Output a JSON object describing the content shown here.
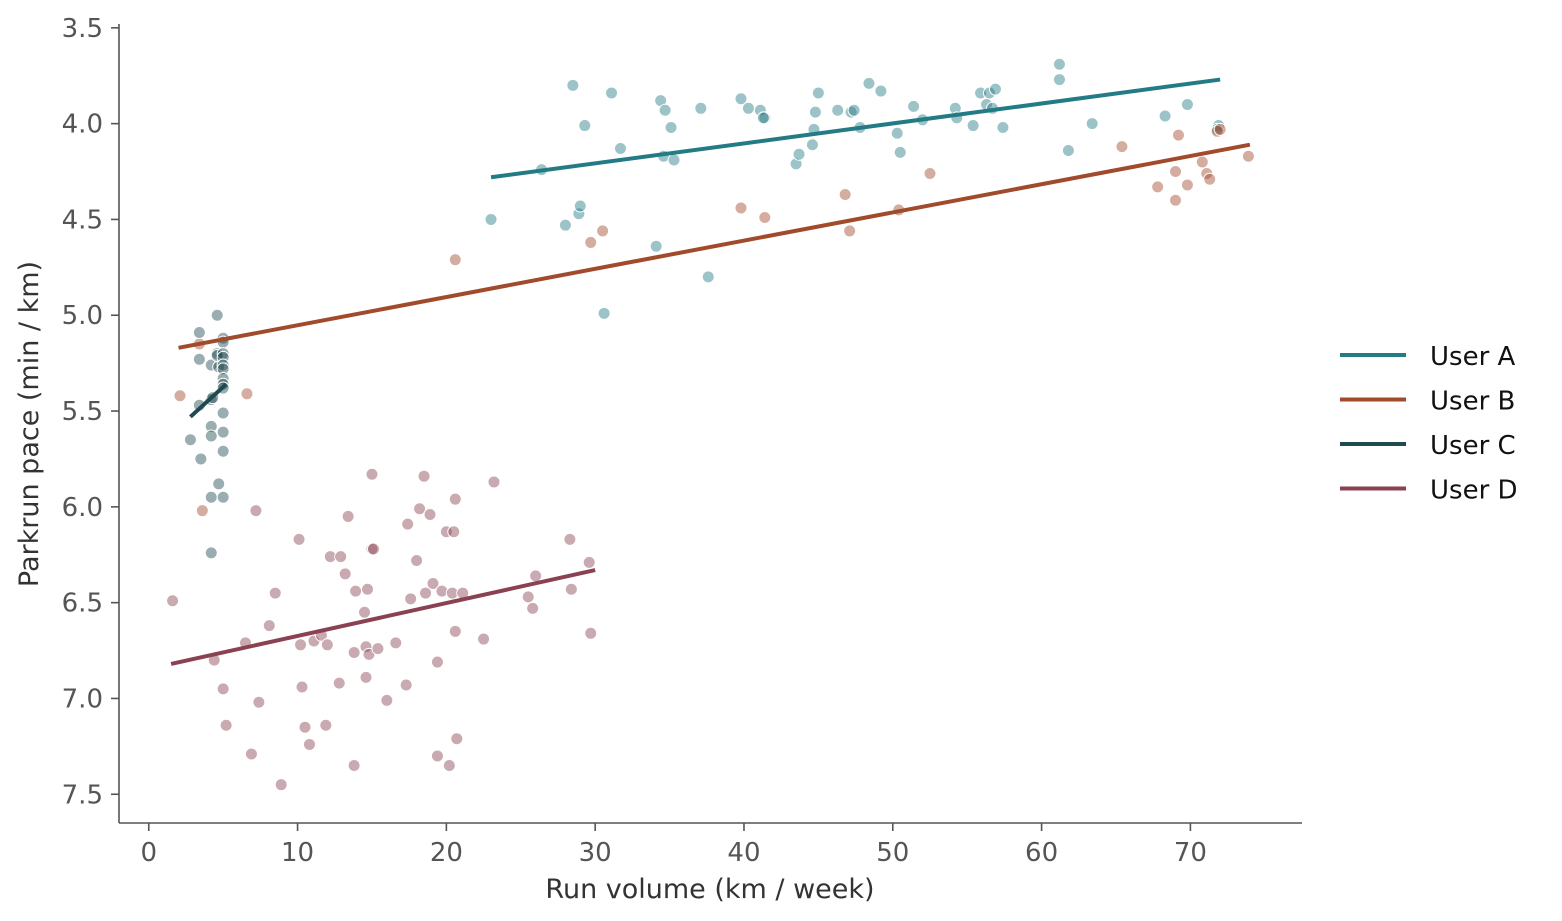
{
  "chart_data": {
    "type": "scatter",
    "title": "",
    "xlabel": "Run volume (km / week)",
    "ylabel": "Parkrun pace (min / km)",
    "xlim": [
      -2,
      77.5
    ],
    "ylim": [
      7.65,
      3.48
    ],
    "y_inverted": true,
    "x_ticks": [
      0,
      10,
      20,
      30,
      40,
      50,
      60,
      70
    ],
    "y_ticks": [
      3.5,
      4.0,
      4.5,
      5.0,
      5.5,
      6.0,
      6.5,
      7.0,
      7.5
    ],
    "x_tick_labels": [
      "0",
      "10",
      "20",
      "30",
      "40",
      "50",
      "60",
      "70"
    ],
    "y_tick_labels": [
      "3.5",
      "4.0",
      "4.5",
      "5.0",
      "5.5",
      "6.0",
      "6.5",
      "7.0",
      "7.5"
    ],
    "grid": false,
    "legend_position": "right",
    "series": [
      {
        "name": "User A",
        "color": "#237b85",
        "trend": [
          [
            23,
            4.28
          ],
          [
            72,
            3.77
          ]
        ],
        "points": [
          [
            28.5,
            3.8
          ],
          [
            31.1,
            3.84
          ],
          [
            29.3,
            4.01
          ],
          [
            26.4,
            4.24
          ],
          [
            23.0,
            4.5
          ],
          [
            28.0,
            4.53
          ],
          [
            28.9,
            4.47
          ],
          [
            29.0,
            4.43
          ],
          [
            30.6,
            4.99
          ],
          [
            31.7,
            4.13
          ],
          [
            34.1,
            4.64
          ],
          [
            34.4,
            3.88
          ],
          [
            34.7,
            3.93
          ],
          [
            35.1,
            4.02
          ],
          [
            34.6,
            4.17
          ],
          [
            35.3,
            4.19
          ],
          [
            37.1,
            3.92
          ],
          [
            37.6,
            4.8
          ],
          [
            39.8,
            3.87
          ],
          [
            40.3,
            3.92
          ],
          [
            41.1,
            3.93
          ],
          [
            41.4,
            3.97
          ],
          [
            41.3,
            3.97
          ],
          [
            43.5,
            4.21
          ],
          [
            43.7,
            4.16
          ],
          [
            44.6,
            4.11
          ],
          [
            44.7,
            4.03
          ],
          [
            44.8,
            3.94
          ],
          [
            45.0,
            3.84
          ],
          [
            46.3,
            3.93
          ],
          [
            47.2,
            3.94
          ],
          [
            47.4,
            3.93
          ],
          [
            47.8,
            4.02
          ],
          [
            48.4,
            3.79
          ],
          [
            49.2,
            3.83
          ],
          [
            50.3,
            4.05
          ],
          [
            50.5,
            4.15
          ],
          [
            51.4,
            3.91
          ],
          [
            52.0,
            3.98
          ],
          [
            54.2,
            3.92
          ],
          [
            54.3,
            3.97
          ],
          [
            55.4,
            4.01
          ],
          [
            55.9,
            3.84
          ],
          [
            56.3,
            3.9
          ],
          [
            56.5,
            3.84
          ],
          [
            56.7,
            3.92
          ],
          [
            56.9,
            3.82
          ],
          [
            57.4,
            4.02
          ],
          [
            61.2,
            3.69
          ],
          [
            61.2,
            3.77
          ],
          [
            61.8,
            4.14
          ],
          [
            63.4,
            4.0
          ],
          [
            68.3,
            3.96
          ],
          [
            69.8,
            3.9
          ],
          [
            71.9,
            4.01
          ],
          [
            71.8,
            4.03
          ]
        ]
      },
      {
        "name": "User B",
        "color": "#a14a2c",
        "trend": [
          [
            2,
            5.17
          ],
          [
            74,
            4.11
          ]
        ],
        "points": [
          [
            2.1,
            5.42
          ],
          [
            3.4,
            5.15
          ],
          [
            3.6,
            6.02
          ],
          [
            6.6,
            5.41
          ],
          [
            20.6,
            4.71
          ],
          [
            29.7,
            4.62
          ],
          [
            30.5,
            4.56
          ],
          [
            39.8,
            4.44
          ],
          [
            41.4,
            4.49
          ],
          [
            46.8,
            4.37
          ],
          [
            47.1,
            4.56
          ],
          [
            50.4,
            4.45
          ],
          [
            52.5,
            4.26
          ],
          [
            65.4,
            4.12
          ],
          [
            67.8,
            4.33
          ],
          [
            69.0,
            4.25
          ],
          [
            69.0,
            4.4
          ],
          [
            69.2,
            4.06
          ],
          [
            69.8,
            4.32
          ],
          [
            70.8,
            4.2
          ],
          [
            71.1,
            4.26
          ],
          [
            71.3,
            4.29
          ],
          [
            71.8,
            4.04
          ],
          [
            72.0,
            4.03
          ],
          [
            73.9,
            4.17
          ]
        ]
      },
      {
        "name": "User C",
        "color": "#1f4a4f",
        "trend": [
          [
            2.8,
            5.53
          ],
          [
            5.2,
            5.36
          ]
        ],
        "points": [
          [
            2.8,
            5.65
          ],
          [
            3.4,
            5.09
          ],
          [
            3.4,
            5.23
          ],
          [
            3.5,
            5.75
          ],
          [
            3.4,
            5.47
          ],
          [
            4.2,
            5.26
          ],
          [
            4.2,
            5.44
          ],
          [
            4.2,
            5.58
          ],
          [
            4.2,
            5.63
          ],
          [
            4.2,
            5.95
          ],
          [
            4.2,
            6.24
          ],
          [
            4.6,
            5.0
          ],
          [
            4.6,
            5.2
          ],
          [
            4.6,
            5.21
          ],
          [
            4.7,
            5.27
          ],
          [
            4.7,
            5.88
          ],
          [
            5.0,
            5.12
          ],
          [
            5.0,
            5.14
          ],
          [
            5.0,
            5.2
          ],
          [
            5.0,
            5.22
          ],
          [
            5.0,
            5.26
          ],
          [
            5.0,
            5.28
          ],
          [
            5.0,
            5.33
          ],
          [
            5.0,
            5.36
          ],
          [
            5.0,
            5.38
          ],
          [
            5.0,
            5.51
          ],
          [
            5.0,
            5.61
          ],
          [
            5.0,
            5.71
          ],
          [
            5.0,
            5.95
          ],
          [
            4.3,
            5.43
          ]
        ]
      },
      {
        "name": "User D",
        "color": "#8a4252",
        "trend": [
          [
            1.5,
            6.82
          ],
          [
            30.0,
            6.33
          ]
        ],
        "points": [
          [
            1.6,
            6.49
          ],
          [
            4.4,
            6.8
          ],
          [
            5.0,
            6.95
          ],
          [
            5.2,
            7.14
          ],
          [
            6.5,
            6.71
          ],
          [
            6.9,
            7.29
          ],
          [
            7.2,
            6.02
          ],
          [
            7.4,
            7.02
          ],
          [
            8.1,
            6.62
          ],
          [
            8.5,
            6.45
          ],
          [
            8.9,
            7.45
          ],
          [
            10.1,
            6.17
          ],
          [
            10.2,
            6.72
          ],
          [
            10.3,
            6.94
          ],
          [
            10.5,
            7.15
          ],
          [
            10.8,
            7.24
          ],
          [
            11.1,
            6.7
          ],
          [
            11.6,
            6.67
          ],
          [
            11.9,
            7.14
          ],
          [
            12.0,
            6.72
          ],
          [
            12.2,
            6.26
          ],
          [
            12.8,
            6.92
          ],
          [
            12.9,
            6.26
          ],
          [
            13.2,
            6.35
          ],
          [
            13.4,
            6.05
          ],
          [
            13.8,
            6.76
          ],
          [
            13.8,
            7.35
          ],
          [
            13.9,
            6.44
          ],
          [
            14.5,
            6.55
          ],
          [
            14.6,
            6.73
          ],
          [
            14.6,
            6.89
          ],
          [
            14.7,
            6.43
          ],
          [
            14.8,
            6.77
          ],
          [
            15.0,
            6.22
          ],
          [
            15.0,
            5.83
          ],
          [
            15.1,
            6.22
          ],
          [
            15.4,
            6.74
          ],
          [
            16.0,
            7.01
          ],
          [
            16.6,
            6.71
          ],
          [
            17.3,
            6.93
          ],
          [
            17.4,
            6.09
          ],
          [
            17.6,
            6.48
          ],
          [
            18.0,
            6.28
          ],
          [
            18.2,
            6.01
          ],
          [
            18.6,
            6.45
          ],
          [
            18.5,
            5.84
          ],
          [
            18.9,
            6.04
          ],
          [
            19.1,
            6.4
          ],
          [
            19.4,
            6.81
          ],
          [
            19.4,
            7.3
          ],
          [
            19.7,
            6.44
          ],
          [
            20.0,
            6.13
          ],
          [
            20.2,
            7.35
          ],
          [
            20.4,
            6.45
          ],
          [
            20.5,
            6.13
          ],
          [
            20.6,
            5.96
          ],
          [
            20.6,
            6.65
          ],
          [
            20.7,
            7.21
          ],
          [
            21.1,
            6.45
          ],
          [
            22.5,
            6.69
          ],
          [
            23.2,
            5.87
          ],
          [
            25.5,
            6.47
          ],
          [
            25.8,
            6.53
          ],
          [
            26.0,
            6.36
          ],
          [
            28.3,
            6.17
          ],
          [
            28.4,
            6.43
          ],
          [
            29.6,
            6.29
          ],
          [
            29.7,
            6.66
          ]
        ]
      }
    ]
  }
}
